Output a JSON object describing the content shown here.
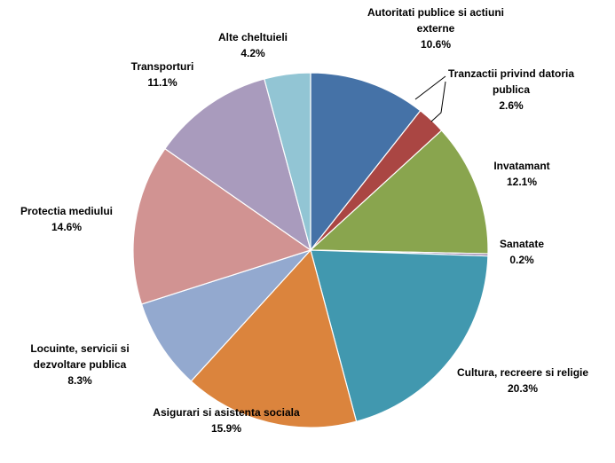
{
  "chart_data": {
    "type": "pie",
    "title": "",
    "legend": "none",
    "slices": [
      {
        "label": "Autoritati publice si actiuni externe",
        "label_lines": [
          "Autoritati publice si actiuni",
          "externe"
        ],
        "value": 10.6,
        "percent_text": "10.6%",
        "color": "#4572A7"
      },
      {
        "label": "Tranzactii privind datoria publica",
        "label_lines": [
          "Tranzactii privind datoria",
          "publica"
        ],
        "value": 2.6,
        "percent_text": "2.6%",
        "color": "#AA4643"
      },
      {
        "label": "Invatamant",
        "label_lines": [
          "Invatamant"
        ],
        "value": 12.1,
        "percent_text": "12.1%",
        "color": "#89A54E"
      },
      {
        "label": "Sanatate",
        "label_lines": [
          "Sanatate"
        ],
        "value": 0.2,
        "percent_text": "0.2%",
        "color": "#71588F"
      },
      {
        "label": "Cultura, recreere si religie",
        "label_lines": [
          "Cultura, recreere si religie"
        ],
        "value": 20.3,
        "percent_text": "20.3%",
        "color": "#4198AF"
      },
      {
        "label": "Asigurari si asistenta sociala",
        "label_lines": [
          "Asigurari si asistenta sociala"
        ],
        "value": 15.9,
        "percent_text": "15.9%",
        "color": "#DB843D"
      },
      {
        "label": "Locuinte, servicii si dezvoltare publica",
        "label_lines": [
          "Locuinte, servicii si",
          "dezvoltare publica"
        ],
        "value": 8.3,
        "percent_text": "8.3%",
        "color": "#93A9CF"
      },
      {
        "label": "Protectia mediului",
        "label_lines": [
          "Protectia mediului"
        ],
        "value": 14.6,
        "percent_text": "14.6%",
        "color": "#D19392"
      },
      {
        "label": "Transporturi",
        "label_lines": [
          "Transporturi"
        ],
        "value": 11.1,
        "percent_text": "11.1%",
        "color": "#A99BBD"
      },
      {
        "label": "Alte cheltuieli",
        "label_lines": [
          "Alte cheltuieli"
        ],
        "value": 4.2,
        "percent_text": "4.2%",
        "color": "#92C5D4"
      }
    ]
  }
}
